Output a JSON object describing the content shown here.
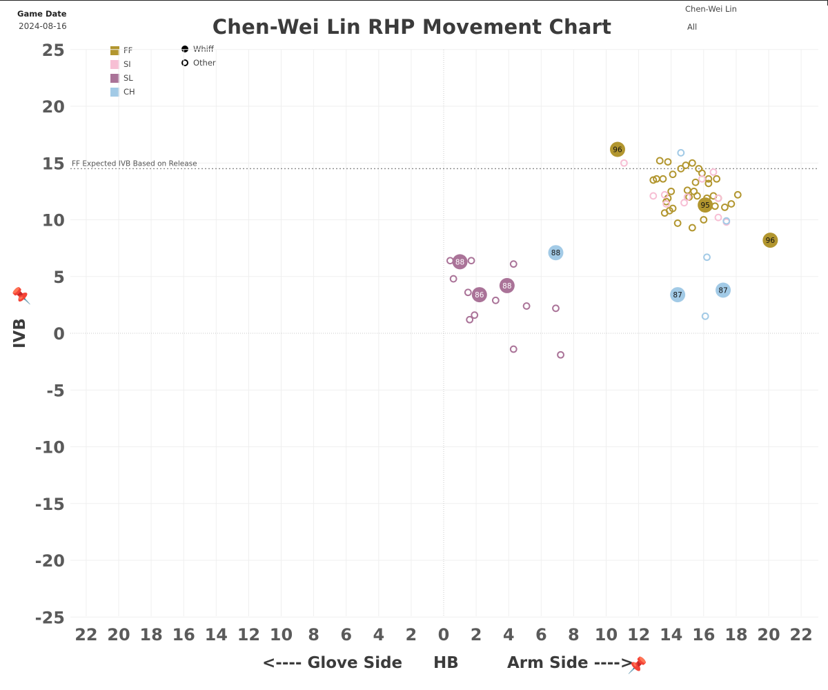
{
  "header": {
    "game_date_label": "Game Date",
    "game_date": "2024-08-16",
    "title": "Chen-Wei Lin RHP Movement Chart",
    "pitcher_filter": "Chen-Wei Lin",
    "pitch_filter": "All"
  },
  "legend": {
    "pitch_types": [
      {
        "label": "FF",
        "color": "#b2962f"
      },
      {
        "label": "SI",
        "color": "#f7bfd4"
      },
      {
        "label": "SL",
        "color": "#aa7398"
      },
      {
        "label": "CH",
        "color": "#a2cae6"
      }
    ],
    "markers": [
      {
        "label": "Whiff",
        "style": "filled"
      },
      {
        "label": "Other",
        "style": "hollow"
      }
    ]
  },
  "icons": {
    "pin": "pin-icon"
  },
  "chart_data": {
    "type": "scatter",
    "title": "Chen-Wei Lin RHP Movement Chart",
    "xlabel_parts": [
      "<---- Glove Side",
      "HB",
      "Arm Side ---->"
    ],
    "ylabel": "IVB",
    "xlim": [
      -23,
      23
    ],
    "ylim": [
      -26,
      26
    ],
    "x_ticks": [
      -22,
      -20,
      -18,
      -16,
      -14,
      -12,
      -10,
      -8,
      -6,
      -4,
      -2,
      0,
      2,
      4,
      6,
      8,
      10,
      12,
      14,
      16,
      18,
      20,
      22
    ],
    "x_tick_labels": [
      "22",
      "20",
      "18",
      "16",
      "14",
      "12",
      "10",
      "8",
      "6",
      "4",
      "2",
      "0",
      "2",
      "4",
      "6",
      "8",
      "10",
      "12",
      "14",
      "16",
      "18",
      "20",
      "22"
    ],
    "y_ticks": [
      25,
      20,
      15,
      10,
      5,
      0,
      -5,
      -10,
      -15,
      -20,
      -25
    ],
    "y_tick_labels": [
      "25",
      "20",
      "15",
      "10",
      "5",
      "0",
      "-5",
      "-10",
      "-15",
      "-20",
      "-25"
    ],
    "grid": true,
    "reference_line": {
      "y": 14.5,
      "label": "FF Expected IVB Based on Release"
    },
    "series": [
      {
        "name": "FF",
        "color": "#b2962f",
        "whiff": [
          {
            "x": 10.7,
            "y": 16.2,
            "velo": "96"
          },
          {
            "x": 16.1,
            "y": 11.3,
            "velo": "95"
          },
          {
            "x": 20.1,
            "y": 8.2,
            "velo": "96"
          }
        ],
        "other": [
          {
            "x": 12.9,
            "y": 13.5
          },
          {
            "x": 13.1,
            "y": 13.6
          },
          {
            "x": 13.3,
            "y": 15.2
          },
          {
            "x": 13.5,
            "y": 13.6
          },
          {
            "x": 13.8,
            "y": 15.1
          },
          {
            "x": 14.1,
            "y": 14.0
          },
          {
            "x": 14.6,
            "y": 14.5
          },
          {
            "x": 14.9,
            "y": 14.8
          },
          {
            "x": 15.3,
            "y": 15.0
          },
          {
            "x": 15.7,
            "y": 14.5
          },
          {
            "x": 15.9,
            "y": 14.1
          },
          {
            "x": 16.3,
            "y": 13.6
          },
          {
            "x": 16.8,
            "y": 13.6
          },
          {
            "x": 16.3,
            "y": 13.2
          },
          {
            "x": 15.5,
            "y": 13.3
          },
          {
            "x": 14.0,
            "y": 12.5
          },
          {
            "x": 15.0,
            "y": 12.6
          },
          {
            "x": 15.4,
            "y": 12.5
          },
          {
            "x": 13.8,
            "y": 11.9
          },
          {
            "x": 13.7,
            "y": 11.6
          },
          {
            "x": 15.1,
            "y": 12.0
          },
          {
            "x": 15.6,
            "y": 12.1
          },
          {
            "x": 16.2,
            "y": 11.9
          },
          {
            "x": 16.6,
            "y": 12.1
          },
          {
            "x": 16.9,
            "y": 11.9
          },
          {
            "x": 18.1,
            "y": 12.2
          },
          {
            "x": 17.7,
            "y": 11.4
          },
          {
            "x": 17.3,
            "y": 11.1
          },
          {
            "x": 16.7,
            "y": 11.2
          },
          {
            "x": 14.1,
            "y": 11.0
          },
          {
            "x": 13.9,
            "y": 10.8
          },
          {
            "x": 13.6,
            "y": 10.6
          },
          {
            "x": 16.0,
            "y": 10.0
          },
          {
            "x": 14.4,
            "y": 9.7
          },
          {
            "x": 15.3,
            "y": 9.3
          },
          {
            "x": 19.9,
            "y": 8.3
          }
        ]
      },
      {
        "name": "SI",
        "color": "#f7bfd4",
        "whiff": [],
        "other": [
          {
            "x": 11.1,
            "y": 15.0
          },
          {
            "x": 12.9,
            "y": 12.1
          },
          {
            "x": 13.6,
            "y": 12.2
          },
          {
            "x": 13.7,
            "y": 11.4
          },
          {
            "x": 14.8,
            "y": 11.5
          },
          {
            "x": 15.0,
            "y": 12.0
          },
          {
            "x": 16.6,
            "y": 14.2
          },
          {
            "x": 15.9,
            "y": 13.6
          },
          {
            "x": 16.9,
            "y": 11.9
          },
          {
            "x": 16.9,
            "y": 10.2
          },
          {
            "x": 17.4,
            "y": 9.8
          }
        ]
      },
      {
        "name": "SL",
        "color": "#aa7398",
        "whiff": [
          {
            "x": 1.0,
            "y": 6.3,
            "velo": "88"
          },
          {
            "x": 2.2,
            "y": 3.4,
            "velo": "86"
          },
          {
            "x": 3.9,
            "y": 4.2,
            "velo": "88"
          }
        ],
        "other": [
          {
            "x": 0.4,
            "y": 6.4
          },
          {
            "x": 1.7,
            "y": 6.4
          },
          {
            "x": 0.6,
            "y": 4.8
          },
          {
            "x": 1.5,
            "y": 3.6
          },
          {
            "x": 3.2,
            "y": 2.9
          },
          {
            "x": 4.3,
            "y": 6.1
          },
          {
            "x": 5.1,
            "y": 2.4
          },
          {
            "x": 6.9,
            "y": 2.2
          },
          {
            "x": 1.9,
            "y": 1.6
          },
          {
            "x": 1.6,
            "y": 1.2
          },
          {
            "x": 4.3,
            "y": -1.4
          },
          {
            "x": 7.2,
            "y": -1.9
          }
        ]
      },
      {
        "name": "CH",
        "color": "#a2cae6",
        "whiff": [
          {
            "x": 6.9,
            "y": 7.1,
            "velo": "88"
          },
          {
            "x": 14.4,
            "y": 3.4,
            "velo": "87"
          },
          {
            "x": 17.2,
            "y": 3.8,
            "velo": "87"
          }
        ],
        "other": [
          {
            "x": 14.6,
            "y": 15.9
          },
          {
            "x": 16.2,
            "y": 6.7
          },
          {
            "x": 16.1,
            "y": 1.5
          },
          {
            "x": 17.4,
            "y": 9.9
          }
        ]
      }
    ]
  }
}
